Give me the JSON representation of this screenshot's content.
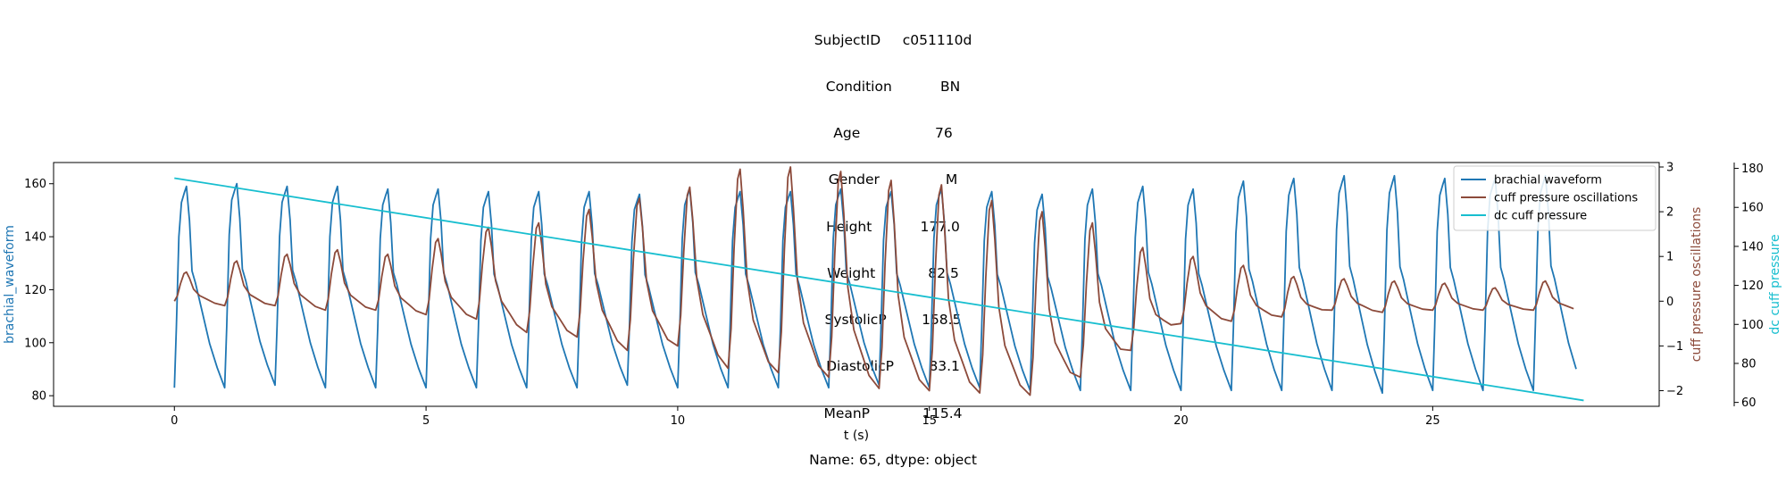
{
  "title_lines": [
    "SubjectID     c051110d",
    "Condition           BN",
    "Age                 76",
    "Gender               M",
    "Height           177.0",
    "Weight            82.5",
    "SystolicP        158.5",
    "DiastolicP        83.1",
    "MeanP            115.4",
    "Name: 65, dtype: object"
  ],
  "colors": {
    "brachial": "#1f77b4",
    "cuff_osc": "#8c4a3a",
    "dc_cuff": "#17becf"
  },
  "chart_data": {
    "type": "line",
    "xlabel": "t (s)",
    "xlim": [
      -2.4,
      29.5
    ],
    "x_ticks": [
      0,
      5,
      10,
      15,
      20,
      25
    ],
    "grid": false,
    "legend_position": "top-right",
    "axes": {
      "left": {
        "label": "brachial_waveform",
        "ylim": [
          76,
          168
        ],
        "ticks": [
          80,
          100,
          120,
          140,
          160
        ]
      },
      "right1": {
        "label": "cuff pressure oscillations",
        "ylim": [
          -2.35,
          3.1
        ],
        "ticks": [
          -2,
          -1,
          0,
          1,
          2,
          3
        ]
      },
      "right2": {
        "label": "dc cuff pressure",
        "ylim": [
          58,
          183
        ],
        "ticks": [
          60,
          80,
          100,
          120,
          140,
          160,
          180
        ]
      }
    },
    "series": [
      {
        "name": "brachial waveform",
        "axis": "left",
        "period": 1.0,
        "first_beat": 0.0,
        "duration": 27.98,
        "beat_shape": [
          [
            0.0,
            0.0
          ],
          [
            0.04,
            0.3
          ],
          [
            0.09,
            0.75
          ],
          [
            0.14,
            0.92
          ],
          [
            0.2,
            0.97
          ],
          [
            0.24,
            1.0
          ],
          [
            0.3,
            0.83
          ],
          [
            0.35,
            0.58
          ],
          [
            0.42,
            0.52
          ],
          [
            0.55,
            0.38
          ],
          [
            0.7,
            0.22
          ],
          [
            0.85,
            0.1
          ],
          [
            1.0,
            0.0
          ]
        ],
        "peaks": [
          159,
          160,
          159,
          159,
          158,
          158,
          157,
          157,
          157,
          156,
          158,
          157,
          157,
          158,
          157,
          158,
          157,
          156,
          158,
          159,
          158,
          161,
          162,
          163,
          163,
          162,
          162,
          163
        ],
        "troughs": [
          83,
          83,
          84,
          83,
          83,
          83,
          83,
          83,
          83,
          84,
          83,
          83,
          83,
          83,
          84,
          83,
          83,
          82,
          82,
          82,
          82,
          82,
          82,
          82,
          81,
          82,
          82,
          82
        ]
      },
      {
        "name": "cuff pressure oscillations",
        "axis": "right1",
        "period": 1.0,
        "first_beat": 0.0,
        "duration": 27.98,
        "beat_shape": [
          [
            0.0,
            0.0
          ],
          [
            0.06,
            0.2
          ],
          [
            0.12,
            0.6
          ],
          [
            0.19,
            0.95
          ],
          [
            0.24,
            1.0
          ],
          [
            0.3,
            0.8
          ],
          [
            0.38,
            0.45
          ],
          [
            0.5,
            0.25
          ],
          [
            0.65,
            0.15
          ],
          [
            0.8,
            0.05
          ],
          [
            1.0,
            0.0
          ]
        ],
        "peaks": [
          0.65,
          0.9,
          1.05,
          1.15,
          1.05,
          1.4,
          1.65,
          1.75,
          2.05,
          2.3,
          2.55,
          2.95,
          3.0,
          2.9,
          2.7,
          2.6,
          2.25,
          2.0,
          1.75,
          1.2,
          1.0,
          0.8,
          0.55,
          0.5,
          0.45,
          0.4,
          0.3,
          0.45
        ],
        "troughs": [
          0.0,
          -0.1,
          -0.1,
          -0.2,
          -0.2,
          -0.3,
          -0.4,
          -0.7,
          -0.8,
          -1.1,
          -1.0,
          -1.5,
          -1.6,
          -1.7,
          -1.95,
          -2.0,
          -2.05,
          -2.1,
          -1.7,
          -1.1,
          -0.5,
          -0.45,
          -0.35,
          -0.2,
          -0.25,
          -0.2,
          -0.2,
          -0.2
        ]
      },
      {
        "name": "dc cuff pressure",
        "axis": "right2",
        "x": [
          0,
          28
        ],
        "values": [
          175,
          61
        ]
      }
    ]
  }
}
